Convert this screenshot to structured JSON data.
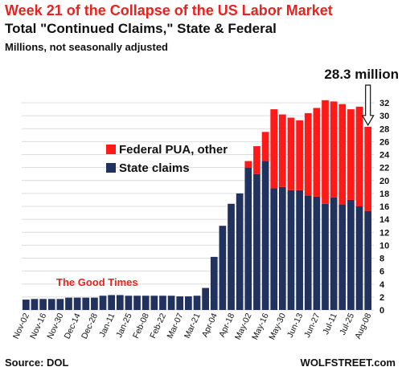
{
  "header": {
    "title": "Week 21 of the Collapse of the US Labor Market",
    "subtitle": "Total \"Continued Claims,\" State & Federal",
    "units": "Millions, not seasonally adjusted"
  },
  "footer": {
    "source": "Source: DOL",
    "brand": "WOLFSTREET.com"
  },
  "colors": {
    "state": "#22325e",
    "federal": "#ff1a1a",
    "grid": "#dcdcdc",
    "good_times": "#e8231f",
    "text": "#111111"
  },
  "chart_data": {
    "type": "bar",
    "stacked": true,
    "title": "Total \"Continued Claims,\" State & Federal",
    "ylabel": "Millions, not seasonally adjusted",
    "ylim": [
      0,
      32
    ],
    "yticks": [
      0,
      2,
      4,
      6,
      8,
      10,
      12,
      14,
      16,
      18,
      20,
      22,
      24,
      26,
      28,
      30,
      32
    ],
    "grid": true,
    "legend_position": "middle-right",
    "x": [
      "Nov-02",
      "Nov-09",
      "Nov-16",
      "Nov-23",
      "Nov-30",
      "Dec-07",
      "Dec-14",
      "Dec-21",
      "Dec-28",
      "Jan-04",
      "Jan-11",
      "Jan-18",
      "Jan-25",
      "Feb-01",
      "Feb-08",
      "Feb-15",
      "Feb-22",
      "Feb-29",
      "Mar-07",
      "Mar-14",
      "Mar-21",
      "Mar-28",
      "Apr-04",
      "Apr-11",
      "Apr-18",
      "Apr-25",
      "May-02",
      "May-09",
      "May-16",
      "May-23",
      "May-30",
      "Jun-06",
      "Jun-13",
      "Jun-20",
      "Jun-27",
      "Jul-04",
      "Jul-11",
      "Jul-18",
      "Jul-25",
      "Aug-01",
      "Aug-08"
    ],
    "xtick_labels": [
      "Nov-02",
      "Nov-16",
      "Nov-30",
      "Dec-14",
      "Dec-28",
      "Jan-11",
      "Jan-25",
      "Feb-08",
      "Feb-22",
      "Mar-07",
      "Mar-21",
      "Apr-04",
      "Apr-18",
      "May-02",
      "May-16",
      "May-30",
      "Jun-13",
      "Jun-27",
      "Jul-11",
      "Jul-25",
      "Aug-08"
    ],
    "series": [
      {
        "name": "State claims",
        "values": [
          1.6,
          1.7,
          1.7,
          1.7,
          1.7,
          1.9,
          1.9,
          1.9,
          1.9,
          2.2,
          2.3,
          2.3,
          2.2,
          2.2,
          2.2,
          2.2,
          2.2,
          2.2,
          2.1,
          2.1,
          2.2,
          3.4,
          8.2,
          13.0,
          16.4,
          18.0,
          22.0,
          21.0,
          23.0,
          18.8,
          19.0,
          18.5,
          18.5,
          17.7,
          17.5,
          16.4,
          17.4,
          16.3,
          17.0,
          16.0,
          15.3
        ]
      },
      {
        "name": "Federal PUA, other",
        "values": [
          0,
          0,
          0,
          0,
          0,
          0,
          0,
          0,
          0,
          0,
          0,
          0,
          0,
          0,
          0,
          0,
          0,
          0,
          0,
          0,
          0,
          0,
          0,
          0,
          0,
          0,
          1.0,
          4.3,
          4.5,
          12.2,
          11.2,
          11.2,
          10.8,
          12.7,
          13.7,
          16.0,
          14.8,
          15.5,
          14.0,
          15.4,
          13.0
        ]
      }
    ],
    "legend": [
      "Federal PUA, other",
      "State claims"
    ],
    "annotations": {
      "good_times": "The Good Times",
      "callout": "28.3 million",
      "callout_index": 40
    }
  }
}
